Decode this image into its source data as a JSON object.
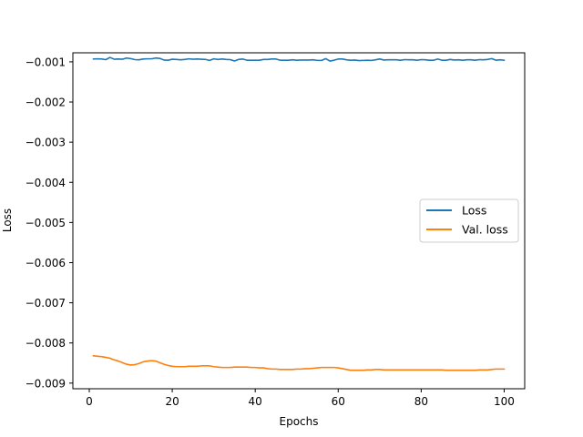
{
  "chart_data": {
    "type": "line",
    "xlabel": "Epochs",
    "ylabel": "Loss",
    "xlim": [
      -3.95,
      104.95
    ],
    "ylim": [
      -0.00914,
      -0.000775
    ],
    "xticks": [
      0,
      20,
      40,
      60,
      80,
      100
    ],
    "xtick_labels": [
      "0",
      "20",
      "40",
      "60",
      "80",
      "100"
    ],
    "yticks": [
      -0.001,
      -0.002,
      -0.003,
      -0.004,
      -0.005,
      -0.006,
      -0.007,
      -0.008,
      -0.009
    ],
    "ytick_labels": [
      "−0.001",
      "−0.002",
      "−0.003",
      "−0.004",
      "−0.005",
      "−0.006",
      "−0.007",
      "−0.008",
      "−0.009"
    ],
    "grid": false,
    "legend_position": "center-right",
    "series": [
      {
        "name": "Loss",
        "color": "#1f77b4",
        "x": [
          1,
          2,
          3,
          4,
          5,
          6,
          7,
          8,
          9,
          10,
          11,
          12,
          13,
          14,
          15,
          16,
          17,
          18,
          19,
          20,
          21,
          22,
          23,
          24,
          25,
          26,
          27,
          28,
          29,
          30,
          31,
          32,
          33,
          34,
          35,
          36,
          37,
          38,
          39,
          40,
          41,
          42,
          43,
          44,
          45,
          46,
          47,
          48,
          49,
          50,
          51,
          52,
          53,
          54,
          55,
          56,
          57,
          58,
          59,
          60,
          61,
          62,
          63,
          64,
          65,
          66,
          67,
          68,
          69,
          70,
          71,
          72,
          73,
          74,
          75,
          76,
          77,
          78,
          79,
          80,
          81,
          82,
          83,
          84,
          85,
          86,
          87,
          88,
          89,
          90,
          91,
          92,
          93,
          94,
          95,
          96,
          97,
          98,
          99,
          100
        ],
        "y": [
          -0.00093,
          -0.000925,
          -0.00093,
          -0.000945,
          -0.00089,
          -0.000935,
          -0.00093,
          -0.000935,
          -0.000905,
          -0.00092,
          -0.000945,
          -0.00095,
          -0.00093,
          -0.000925,
          -0.000925,
          -0.000905,
          -0.000915,
          -0.000955,
          -0.00096,
          -0.000935,
          -0.00094,
          -0.00095,
          -0.00094,
          -0.000925,
          -0.000935,
          -0.00093,
          -0.000935,
          -0.00094,
          -0.000965,
          -0.000925,
          -0.00094,
          -0.00093,
          -0.00094,
          -0.000945,
          -0.00098,
          -0.00094,
          -0.00093,
          -0.00096,
          -0.00096,
          -0.00096,
          -0.00096,
          -0.00094,
          -0.00094,
          -0.00093,
          -0.00093,
          -0.00096,
          -0.00096,
          -0.00096,
          -0.00095,
          -0.00096,
          -0.000955,
          -0.000955,
          -0.000955,
          -0.00095,
          -0.000965,
          -0.000965,
          -0.00092,
          -0.00098,
          -0.00096,
          -0.00093,
          -0.00093,
          -0.00095,
          -0.00096,
          -0.000955,
          -0.00097,
          -0.000965,
          -0.00096,
          -0.000965,
          -0.00095,
          -0.00093,
          -0.000955,
          -0.00095,
          -0.00095,
          -0.00095,
          -0.00096,
          -0.000945,
          -0.00095,
          -0.00095,
          -0.00096,
          -0.000945,
          -0.00095,
          -0.00096,
          -0.00096,
          -0.00093,
          -0.00096,
          -0.00096,
          -0.00094,
          -0.000955,
          -0.00095,
          -0.00096,
          -0.00095,
          -0.00095,
          -0.00096,
          -0.000945,
          -0.00095,
          -0.00094,
          -0.00092,
          -0.00096,
          -0.00095,
          -0.00096
        ]
      },
      {
        "name": "Val. loss",
        "color": "#ff7f0e",
        "x": [
          1,
          2,
          3,
          4,
          5,
          6,
          7,
          8,
          9,
          10,
          11,
          12,
          13,
          14,
          15,
          16,
          17,
          18,
          19,
          20,
          21,
          22,
          23,
          24,
          25,
          26,
          27,
          28,
          29,
          30,
          31,
          32,
          33,
          34,
          35,
          36,
          37,
          38,
          39,
          40,
          41,
          42,
          43,
          44,
          45,
          46,
          47,
          48,
          49,
          50,
          51,
          52,
          53,
          54,
          55,
          56,
          57,
          58,
          59,
          60,
          61,
          62,
          63,
          64,
          65,
          66,
          67,
          68,
          69,
          70,
          71,
          72,
          73,
          74,
          75,
          76,
          77,
          78,
          79,
          80,
          81,
          82,
          83,
          84,
          85,
          86,
          87,
          88,
          89,
          90,
          91,
          92,
          93,
          94,
          95,
          96,
          97,
          98,
          99,
          100
        ],
        "y": [
          -0.00832,
          -0.00833,
          -0.00834,
          -0.00836,
          -0.00838,
          -0.00842,
          -0.00845,
          -0.00849,
          -0.00853,
          -0.00855,
          -0.00854,
          -0.00851,
          -0.00847,
          -0.00845,
          -0.00844,
          -0.00845,
          -0.00849,
          -0.00853,
          -0.00856,
          -0.00858,
          -0.00859,
          -0.00859,
          -0.00859,
          -0.00858,
          -0.00858,
          -0.00858,
          -0.00857,
          -0.00857,
          -0.00857,
          -0.00859,
          -0.0086,
          -0.00861,
          -0.00861,
          -0.00861,
          -0.0086,
          -0.0086,
          -0.0086,
          -0.0086,
          -0.00861,
          -0.00861,
          -0.00862,
          -0.00862,
          -0.00864,
          -0.00865,
          -0.00865,
          -0.00866,
          -0.00866,
          -0.00866,
          -0.00866,
          -0.00865,
          -0.00865,
          -0.00864,
          -0.00864,
          -0.00863,
          -0.00862,
          -0.00861,
          -0.00861,
          -0.00861,
          -0.00861,
          -0.00862,
          -0.00864,
          -0.00866,
          -0.00868,
          -0.00868,
          -0.00868,
          -0.00868,
          -0.00867,
          -0.00867,
          -0.00866,
          -0.00866,
          -0.00867,
          -0.00867,
          -0.00867,
          -0.00867,
          -0.00867,
          -0.00867,
          -0.00867,
          -0.00867,
          -0.00867,
          -0.00867,
          -0.00867,
          -0.00867,
          -0.00867,
          -0.00867,
          -0.00867,
          -0.00868,
          -0.00868,
          -0.00868,
          -0.00868,
          -0.00868,
          -0.00868,
          -0.00868,
          -0.00868,
          -0.00867,
          -0.00867,
          -0.00867,
          -0.00866,
          -0.00865,
          -0.00865,
          -0.00865
        ]
      }
    ]
  }
}
